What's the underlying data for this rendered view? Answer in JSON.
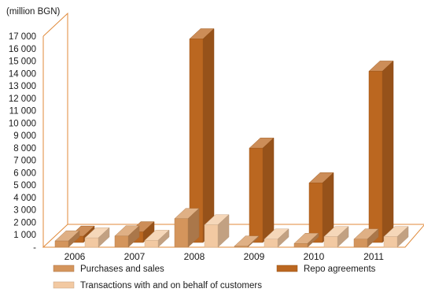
{
  "chart_data": {
    "type": "bar",
    "unit_label": "(million BGN)",
    "categories": [
      "2006",
      "2007",
      "2008",
      "2009",
      "2010",
      "2011"
    ],
    "y_ticks": [
      "-",
      "1 000",
      "2 000",
      "3 000",
      "4 000",
      "5 000",
      "6 000",
      "7 000",
      "8 000",
      "9 000",
      "10 000",
      "11 000",
      "12 000",
      "13 000",
      "14 000",
      "15 000",
      "16 000",
      "17 000"
    ],
    "ylim": [
      0,
      17000
    ],
    "grid": false,
    "legend_position": "bottom",
    "series": [
      {
        "name": "Purchases and sales",
        "color": "#d4955c",
        "values": [
          500,
          900,
          2300,
          80,
          300,
          650
        ]
      },
      {
        "name": "Repo agreements",
        "color": "#bb6720",
        "values": [
          500,
          850,
          16400,
          7600,
          4800,
          13800
        ]
      },
      {
        "name": "Transactions with and on behalf of customers",
        "color": "#f2c9a2",
        "values": [
          750,
          550,
          1800,
          650,
          850,
          850
        ]
      }
    ]
  }
}
